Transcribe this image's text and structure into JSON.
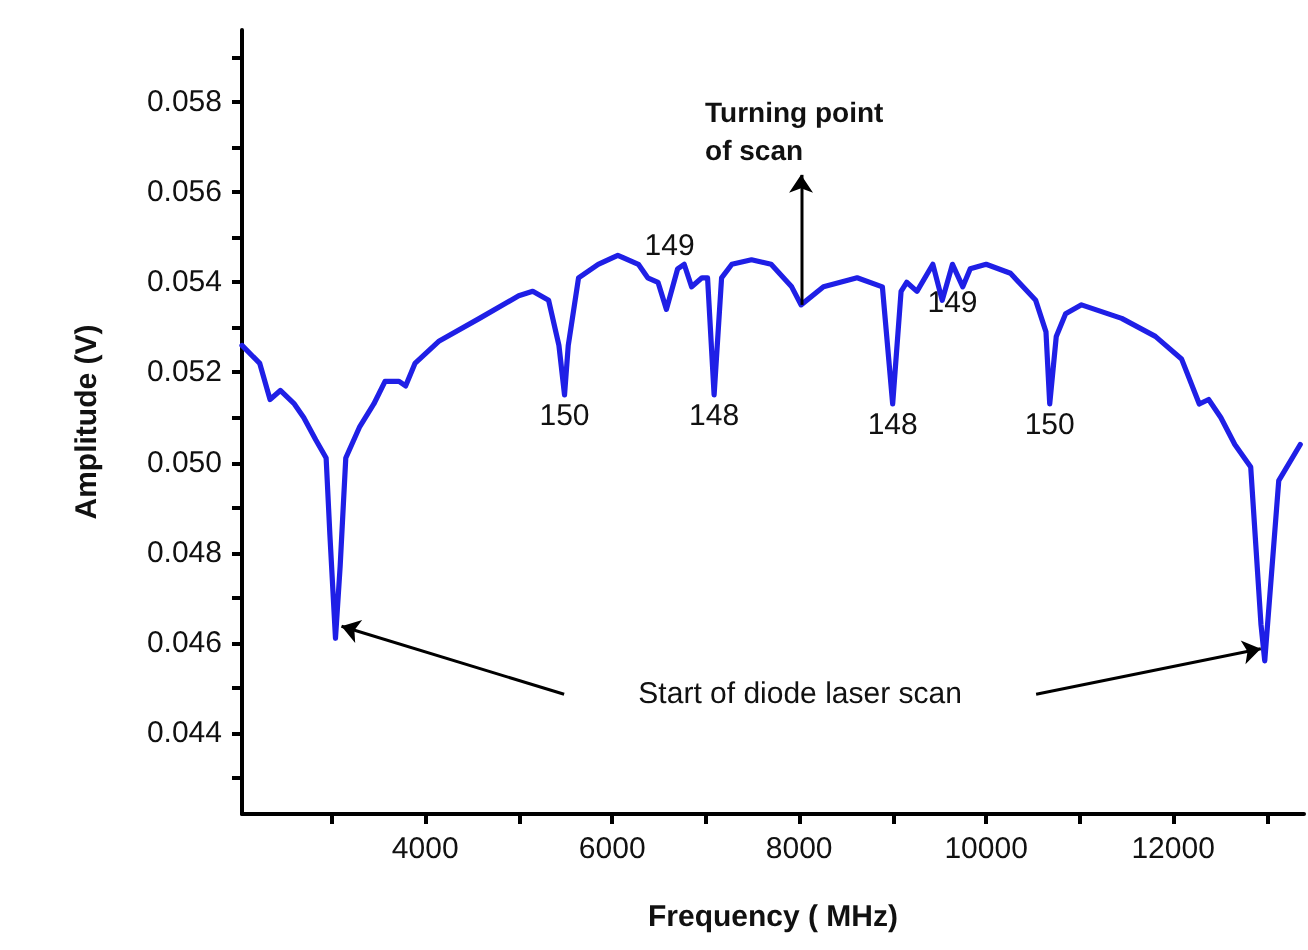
{
  "chart_data": {
    "type": "line",
    "xlabel": "Frequency ( MHz)",
    "ylabel": "Amplitude (V)",
    "x": [
      2040,
      2230,
      2340,
      2450,
      2600,
      2700,
      2830,
      2940,
      2980,
      3040,
      3090,
      3150,
      3300,
      3450,
      3570,
      3720,
      3790,
      3890,
      4150,
      4580,
      5000,
      5150,
      5320,
      5430,
      5490,
      5530,
      5640,
      5850,
      6060,
      6280,
      6380,
      6490,
      6580,
      6700,
      6770,
      6850,
      6960,
      7020,
      7090,
      7170,
      7280,
      7490,
      7700,
      7920,
      8020,
      8260,
      8620,
      8890,
      9000,
      9090,
      9150,
      9260,
      9430,
      9530,
      9640,
      9750,
      9830,
      10000,
      10260,
      10530,
      10640,
      10680,
      10750,
      10850,
      11020,
      11450,
      11810,
      12090,
      12280,
      12380,
      12510,
      12660,
      12830,
      12940,
      12980,
      13130,
      13360
    ],
    "series": [
      {
        "color": "#1f1fe6",
        "values": [
          0.0526,
          0.0522,
          0.0514,
          0.0516,
          0.0513,
          0.051,
          0.0505,
          0.0501,
          0.0484,
          0.0461,
          0.0477,
          0.0501,
          0.0508,
          0.0513,
          0.0518,
          0.0518,
          0.0517,
          0.0522,
          0.0527,
          0.0532,
          0.0537,
          0.0538,
          0.0536,
          0.0526,
          0.0515,
          0.0526,
          0.0541,
          0.0544,
          0.0546,
          0.0544,
          0.0541,
          0.054,
          0.0534,
          0.0543,
          0.0544,
          0.0539,
          0.0541,
          0.0541,
          0.0515,
          0.0541,
          0.0544,
          0.0545,
          0.0544,
          0.0539,
          0.0535,
          0.0539,
          0.0541,
          0.0539,
          0.0513,
          0.0538,
          0.054,
          0.0538,
          0.0544,
          0.0536,
          0.0544,
          0.0539,
          0.0543,
          0.0544,
          0.0542,
          0.0536,
          0.0529,
          0.0513,
          0.0528,
          0.0533,
          0.0535,
          0.0532,
          0.0528,
          0.0523,
          0.0513,
          0.0514,
          0.051,
          0.0504,
          0.0499,
          0.0464,
          0.0456,
          0.0496,
          0.0504
        ]
      }
    ],
    "xlim": [
      2040,
      13400
    ],
    "xticks": [
      {
        "value": 3000,
        "label": null
      },
      4000,
      {
        "value": 5000,
        "label": null
      },
      6000,
      {
        "value": 7000,
        "label": null
      },
      8000,
      {
        "value": 9000,
        "label": null
      },
      10000,
      {
        "value": 11000,
        "label": null
      },
      12000,
      {
        "value": 13000,
        "label": null
      }
    ],
    "ylim": [
      0.0422,
      0.0596
    ],
    "yticks": [
      {
        "value": 0.043,
        "label": null
      },
      0.044,
      {
        "value": 0.045,
        "label": null
      },
      0.046,
      {
        "value": 0.047,
        "label": null
      },
      0.048,
      {
        "value": 0.049,
        "label": null
      },
      {
        "value": 0.05,
        "label": "0.050"
      },
      {
        "value": 0.051,
        "label": null
      },
      0.052,
      {
        "value": 0.053,
        "label": null
      },
      0.054,
      {
        "value": 0.055,
        "label": null
      },
      0.056,
      {
        "value": 0.057,
        "label": null
      },
      0.058,
      {
        "value": 0.059,
        "label": null
      }
    ],
    "marker": "none",
    "line_style": "solid",
    "annotations": [
      {
        "text": "150",
        "x": 5490,
        "y": 0.0515
      },
      {
        "text": "149",
        "x": 6700,
        "y": 0.0534
      },
      {
        "text": "148",
        "x": 7090,
        "y": 0.0515
      },
      {
        "text": "Turning point\nof scan",
        "x": 8020,
        "y": 0.0535
      },
      {
        "text": "148",
        "x": 9000,
        "y": 0.0513
      },
      {
        "text": "149",
        "x": 9640,
        "y": 0.0536
      },
      {
        "text": "150",
        "x": 10680,
        "y": 0.0513
      },
      "Start of diode laser scan"
    ]
  }
}
